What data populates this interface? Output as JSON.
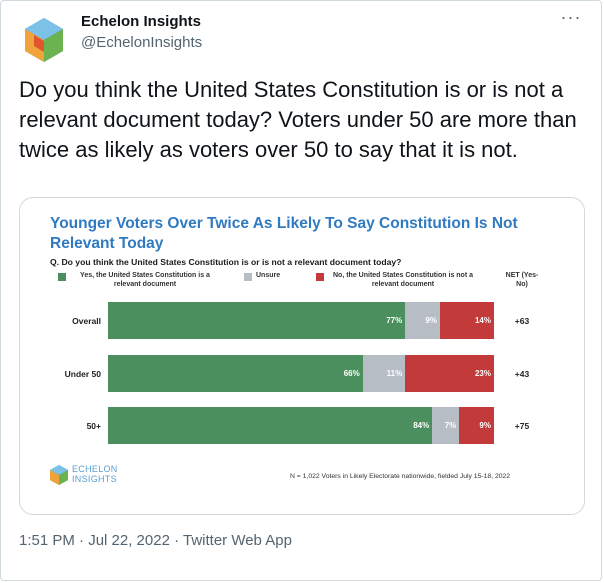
{
  "author": {
    "name": "Echelon Insights",
    "handle": "@EchelonInsights"
  },
  "tweet": {
    "text": "Do you think the United States Constitution is or is not a relevant document today? Voters under 50 are more than twice as likely as voters over 50 to say that it is not."
  },
  "chart_data": {
    "type": "bar",
    "title": "Younger Voters Over Twice As Likely To Say Constitution Is Not Relevant Today",
    "question": "Q. Do you think the United States Constitution is or is not a relevant document today?",
    "categories": [
      "Overall",
      "Under 50",
      "50+"
    ],
    "series": [
      {
        "name": "Yes, the United States Constitution is a relevant document",
        "color": "#4b8f5e",
        "values": [
          77,
          66,
          84
        ],
        "labels": [
          "77%",
          "66%",
          "84%"
        ]
      },
      {
        "name": "Unsure",
        "color": "#b7bdc4",
        "values": [
          9,
          11,
          7
        ],
        "labels": [
          "9%",
          "11%",
          "7%"
        ]
      },
      {
        "name": "No, the United States Constitution is not a relevant document",
        "color": "#c23a3a",
        "values": [
          14,
          23,
          9
        ],
        "labels": [
          "14%",
          "23%",
          "9%"
        ]
      }
    ],
    "net_header": "NET (Yes-No)",
    "net": [
      "+63",
      "+43",
      "+75"
    ],
    "xlim": [
      0,
      100
    ],
    "footnote": "N = 1,022 Voters in Likely Electorate nationwide, fielded July 15-18, 2022"
  },
  "logo": {
    "line1": "ECHELON",
    "line2": "INSIGHTS"
  },
  "meta": {
    "text": "1:51 PM · Jul 22, 2022 · Twitter Web App"
  },
  "colors": {
    "title_blue": "#2f7ac0",
    "handle_gray": "#536471"
  }
}
